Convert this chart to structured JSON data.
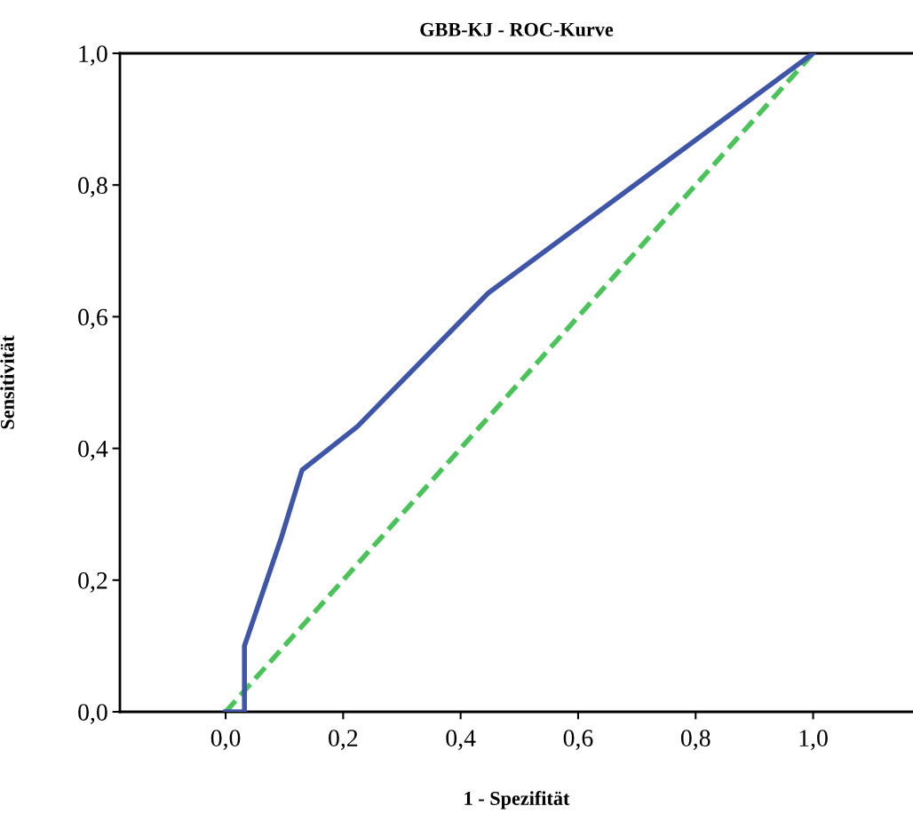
{
  "chart_data": {
    "type": "line",
    "title": "GBB-KJ - ROC-Kurve",
    "xlabel": "1 - Spezifität",
    "ylabel": "Sensitivität",
    "series": [
      {
        "color": "#3f55a8",
        "line_style": "solid",
        "x": [
          0,
          0.032,
          0.032,
          0.095,
          0.13,
          0.224,
          0.447,
          1.0
        ],
        "values": [
          0,
          0,
          0.1,
          0.265,
          0.367,
          0.433,
          0.636,
          1.0
        ]
      },
      {
        "color": "#4cc35a",
        "line_style": "dashed",
        "x": [
          0,
          1.0
        ],
        "values": [
          0,
          1.0
        ]
      }
    ],
    "xlim": [
      -0.18,
      1.17
    ],
    "ylim": [
      0,
      1.0
    ],
    "xticks": [
      {
        "value": 0,
        "label": "0,0"
      },
      {
        "value": 0.2,
        "label": "0,2"
      },
      {
        "value": 0.4,
        "label": "0,4"
      },
      {
        "value": 0.6,
        "label": "0,6"
      },
      {
        "value": 0.8,
        "label": "0,8"
      },
      {
        "value": 1.0,
        "label": "1,0"
      }
    ],
    "yticks": [
      {
        "value": 0,
        "label": "0,0"
      },
      {
        "value": 0.2,
        "label": "0,2"
      },
      {
        "value": 0.4,
        "label": "0,4"
      },
      {
        "value": 0.6,
        "label": "0,6"
      },
      {
        "value": 0.8,
        "label": "0,8"
      },
      {
        "value": 1.0,
        "label": "1,0"
      }
    ],
    "grid": false,
    "legend": false,
    "marker": "none"
  }
}
